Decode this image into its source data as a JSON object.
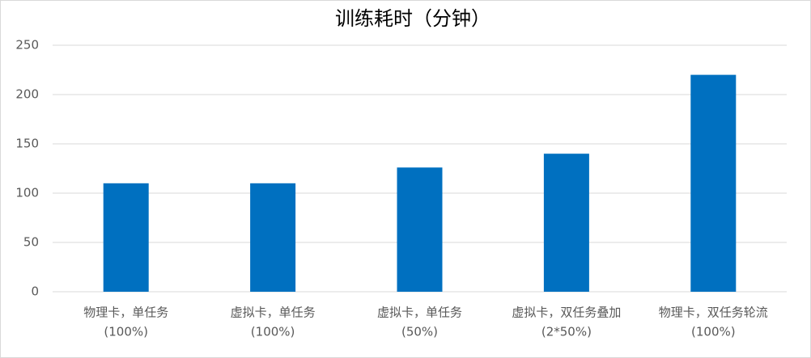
{
  "chart_data": {
    "type": "bar",
    "title": "训练耗时（分钟）",
    "categories": [
      [
        "物理卡，单任务",
        "(100%)"
      ],
      [
        "虚拟卡，单任务",
        "(100%)"
      ],
      [
        "虚拟卡，单任务",
        "(50%)"
      ],
      [
        "虚拟卡，双任务叠加",
        "(2*50%)"
      ],
      [
        "物理卡，双任务轮流",
        "(100%)"
      ]
    ],
    "values": [
      110,
      110,
      126,
      140,
      220
    ],
    "color": "#0070c0",
    "ylim": [
      0,
      250
    ],
    "yticks": [
      0,
      50,
      100,
      150,
      200,
      250
    ],
    "grid": true
  }
}
